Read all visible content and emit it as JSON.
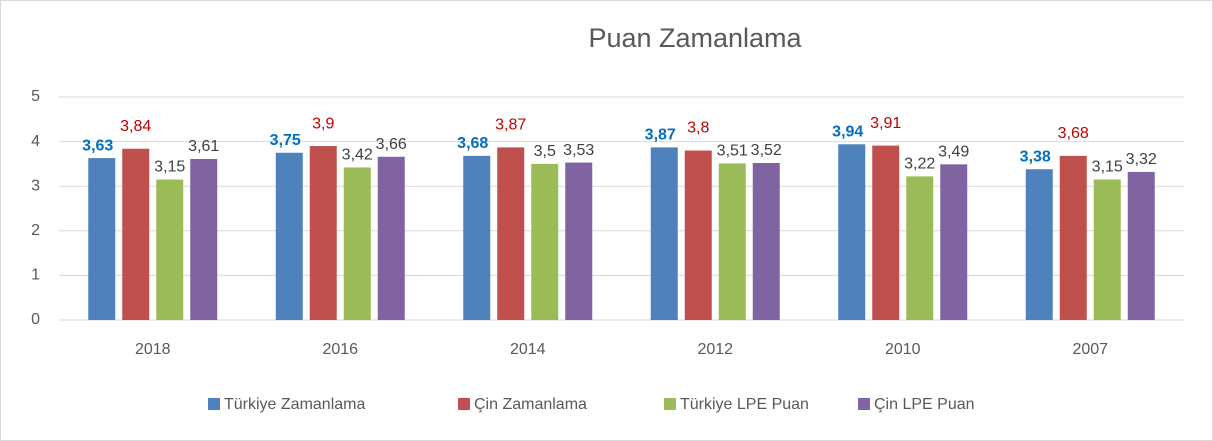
{
  "chart_data": {
    "type": "bar",
    "title": "Puan Zamanlama",
    "categories": [
      "2018",
      "2016",
      "2014",
      "2012",
      "2010",
      "2007"
    ],
    "series": [
      {
        "name": "Türkiye Zamanlama",
        "color": "#4f81bd",
        "label_color": "#0070c0",
        "values": [
          3.63,
          3.75,
          3.68,
          3.87,
          3.94,
          3.38
        ],
        "value_labels": [
          "3,63",
          "3,75",
          "3,68",
          "3,87",
          "3,94",
          "3,38"
        ]
      },
      {
        "name": "Çin Zamanlama",
        "color": "#c0504d",
        "label_color": "#c00000",
        "values": [
          3.84,
          3.9,
          3.87,
          3.8,
          3.91,
          3.68
        ],
        "value_labels": [
          "3,84",
          "3,9",
          "3,87",
          "3,8",
          "3,91",
          "3,68"
        ]
      },
      {
        "name": "Türkiye LPE Puan",
        "color": "#9bbb59",
        "label_color": "#404040",
        "values": [
          3.15,
          3.42,
          3.5,
          3.51,
          3.22,
          3.15
        ],
        "value_labels": [
          "3,15",
          "3,42",
          "3,5",
          "3,51",
          "3,22",
          "3,15"
        ]
      },
      {
        "name": "Çin LPE Puan",
        "color": "#8064a2",
        "label_color": "#404040",
        "values": [
          3.61,
          3.66,
          3.53,
          3.52,
          3.49,
          3.32
        ],
        "value_labels": [
          "3,61",
          "3,66",
          "3,53",
          "3,52",
          "3,49",
          "3,32"
        ]
      }
    ],
    "ylim": [
      0,
      5
    ],
    "yticks": [
      0,
      1,
      2,
      3,
      4,
      5
    ],
    "grid": true,
    "legend": "bottom"
  }
}
